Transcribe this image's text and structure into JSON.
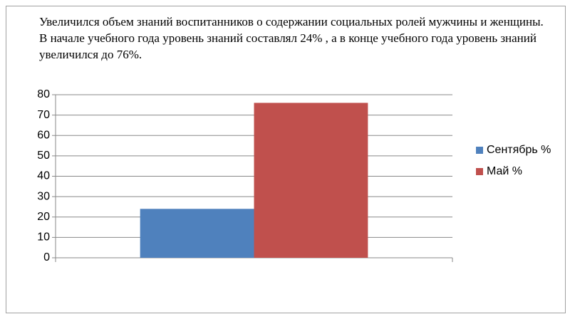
{
  "chart_data": {
    "type": "bar",
    "title": "Увеличился объем знаний воспитанников о содержании  социальных  ролей мужчины  и женщины.",
    "subtitle": "В начале учебного года уровень знаний составлял 24% , а в конце учебного года уровень знаний увеличился до 76%.",
    "categories": [
      null
    ],
    "series": [
      {
        "name": "Сентябрь %",
        "color": "#4f81bd",
        "values": [
          24
        ]
      },
      {
        "name": "Май %",
        "color": "#c0504d",
        "values": [
          76
        ]
      }
    ],
    "ylim": [
      0,
      80
    ],
    "yticks": [
      0,
      10,
      20,
      30,
      40,
      50,
      60,
      70,
      80
    ],
    "grid": true,
    "legend": "right"
  }
}
